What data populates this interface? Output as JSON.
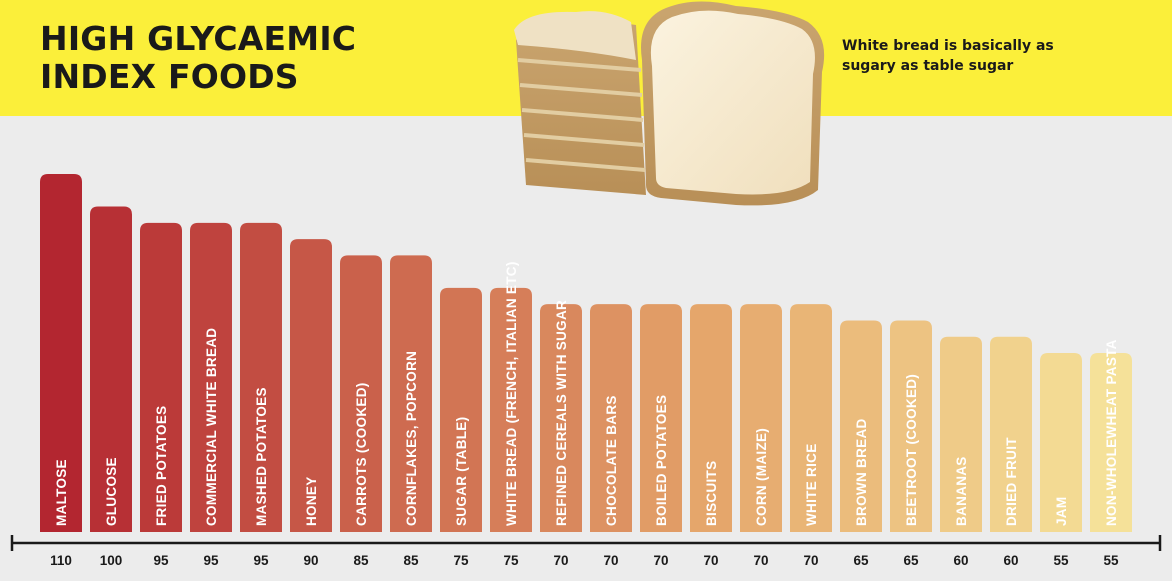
{
  "title": {
    "line1": "HIGH GLYCAEMIC",
    "line2": "INDEX FOODS"
  },
  "caption": "White bread is basically as sugary as table sugar",
  "colors": {
    "header_band": "#fbef3a",
    "background": "#ececec",
    "bar_start": "#b32630",
    "bar_mid": "#e5a66b",
    "bar_end": "#f5e199"
  },
  "chart_data": {
    "type": "bar",
    "categories": [
      "MALTOSE",
      "GLUCOSE",
      "FRIED POTATOES",
      "COMMERCIAL WHITE BREAD",
      "MASHED POTATOES",
      "HONEY",
      "CARROTS (COOKED)",
      "CORNFLAKES, POPCORN",
      "SUGAR (TABLE)",
      "WHITE BREAD (FRENCH, ITALIAN ETC)",
      "REFINED CEREALS WITH SUGAR",
      "CHOCOLATE BARS",
      "BOILED POTATOES",
      "BISCUITS",
      "CORN (MAIZE)",
      "WHITE RICE",
      "BROWN BREAD",
      "BEETROOT (COOKED)",
      "BANANAS",
      "DRIED FRUIT",
      "JAM",
      "NON-WHOLEWHEAT PASTA"
    ],
    "values": [
      110,
      100,
      95,
      95,
      95,
      90,
      85,
      85,
      75,
      75,
      70,
      70,
      70,
      70,
      70,
      70,
      65,
      65,
      60,
      60,
      55,
      55
    ],
    "title": "HIGH GLYCAEMIC INDEX FOODS",
    "xlabel": "",
    "ylabel": "",
    "axis": "bottom",
    "orientation": "vertical",
    "grid": false,
    "legend": "none"
  }
}
